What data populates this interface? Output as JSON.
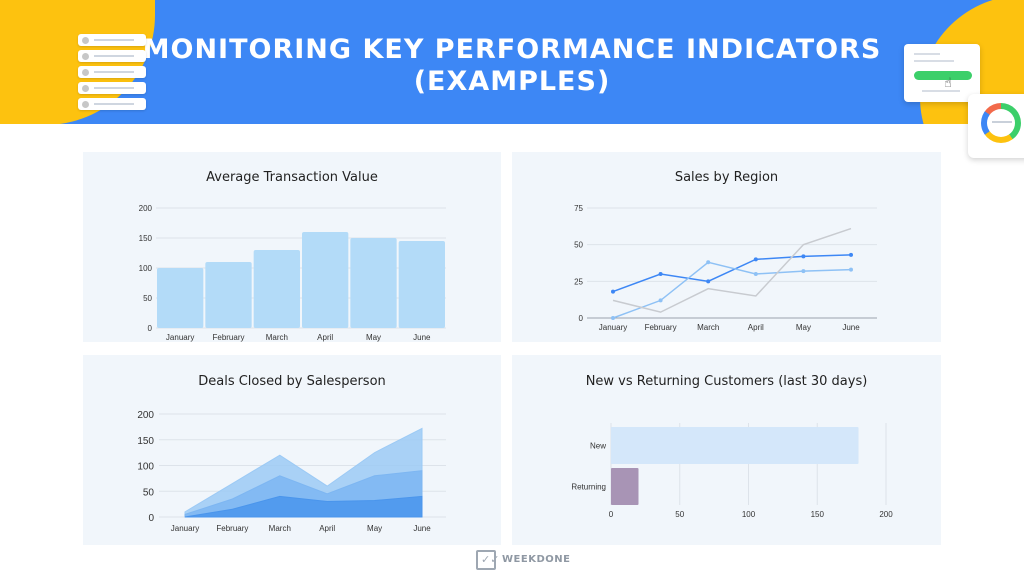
{
  "header": {
    "title_line1": "MONITORING KEY PERFORMANCE INDICATORS",
    "title_line2": "(EXAMPLES)"
  },
  "colors": {
    "header_bg": "#3d87f5",
    "accent_yellow": "#fdc20f",
    "panel_bg": "#f1f6fb",
    "bar_fill": "#b3dbf8",
    "line_dark": "#3d87f5",
    "line_light": "#8ec1f5",
    "line_gray": "#c8cbd0",
    "area_light": "#9ccaf5",
    "area_mid": "#7db6f2",
    "area_dark": "#4a95ec",
    "hbar_new": "#d4e7fa",
    "hbar_returning": "#a894b5"
  },
  "footer": {
    "brand": "WEEKDONE",
    "logo_icon": "weekdone-check-icon"
  },
  "chart_data": [
    {
      "type": "bar",
      "title": "Average Transaction Value",
      "categories": [
        "January",
        "February",
        "March",
        "April",
        "May",
        "June"
      ],
      "values": [
        100,
        110,
        130,
        160,
        150,
        145
      ],
      "ylim": [
        0,
        200
      ],
      "yticks": [
        0,
        50,
        100,
        150,
        200
      ],
      "grid": true
    },
    {
      "type": "line",
      "title": "Sales by Region",
      "categories": [
        "January",
        "February",
        "March",
        "April",
        "May",
        "June"
      ],
      "series": [
        {
          "values": [
            18,
            30,
            25,
            40,
            42,
            43
          ],
          "color": "#3d87f5",
          "markers": true
        },
        {
          "values": [
            0,
            12,
            38,
            30,
            32,
            33
          ],
          "color": "#8ec1f5",
          "markers": true
        },
        {
          "values": [
            12,
            4,
            20,
            15,
            50,
            61
          ],
          "color": "#c8cbd0",
          "markers": false
        }
      ],
      "ylim": [
        0,
        75
      ],
      "yticks": [
        0,
        25,
        50,
        75
      ],
      "grid": true
    },
    {
      "type": "area",
      "title": "Deals Closed by Salesperson",
      "categories": [
        "January",
        "February",
        "March",
        "April",
        "May",
        "June"
      ],
      "series": [
        {
          "values": [
            10,
            65,
            120,
            60,
            125,
            172
          ],
          "color": "#9ccaf5"
        },
        {
          "values": [
            5,
            35,
            80,
            45,
            80,
            90
          ],
          "color": "#7db6f2"
        },
        {
          "values": [
            0,
            15,
            40,
            30,
            32,
            40
          ],
          "color": "#4a95ec"
        }
      ],
      "ylim": [
        0,
        200
      ],
      "yticks": [
        0,
        50,
        100,
        150,
        200
      ],
      "grid": true
    },
    {
      "type": "bar",
      "orientation": "horizontal",
      "title": "New vs Returning Customers (last 30 days)",
      "categories": [
        "New",
        "Returning"
      ],
      "values": [
        180,
        20
      ],
      "xlim": [
        0,
        200
      ],
      "xticks": [
        0,
        50,
        100,
        150,
        200
      ],
      "grid": true
    }
  ]
}
